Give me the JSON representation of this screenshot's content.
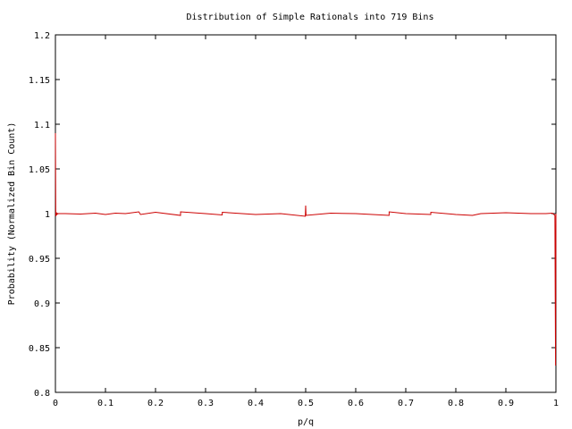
{
  "chart_data": {
    "type": "line",
    "title": "Distribution of Simple Rationals into 719 Bins",
    "xlabel": "p/q",
    "ylabel": "Probability (Normalized Bin Count)",
    "xlim": [
      0,
      1
    ],
    "ylim": [
      0.8,
      1.2
    ],
    "xticks": [
      0,
      0.1,
      0.2,
      0.3,
      0.4,
      0.5,
      0.6,
      0.7,
      0.8,
      0.9,
      1
    ],
    "xtick_labels": [
      "0",
      "0.1",
      "0.2",
      "0.3",
      "0.4",
      "0.5",
      "0.6",
      "0.7",
      "0.8",
      "0.9",
      "1"
    ],
    "yticks": [
      0.8,
      0.85,
      0.9,
      0.95,
      1,
      1.05,
      1.1,
      1.15,
      1.2
    ],
    "ytick_labels": [
      "0.8",
      "0.85",
      "0.9",
      "0.95",
      "1",
      "1.05",
      "1.1",
      "1.15",
      "1.2"
    ],
    "grid": false,
    "color": "#cc0000",
    "series": [
      {
        "x": [
          0.0,
          0.0007,
          0.0014,
          0.002,
          0.003,
          0.004,
          0.006,
          0.01,
          0.02,
          0.05,
          0.08,
          0.1,
          0.12,
          0.14,
          0.1667,
          0.17,
          0.2,
          0.25,
          0.2501,
          0.3,
          0.3333,
          0.3334,
          0.4,
          0.45,
          0.4993,
          0.5,
          0.5007,
          0.55,
          0.6,
          0.6667,
          0.6668,
          0.7,
          0.75,
          0.7501,
          0.8,
          0.8333,
          0.85,
          0.9,
          0.95,
          0.98,
          0.993,
          0.996,
          0.998,
          0.9986,
          0.9993,
          1.0
        ],
        "y": [
          1.09,
          0.997,
          1.001,
          0.998,
          1.0005,
          0.9995,
          1.0,
          1.0,
          1.0,
          0.9995,
          1.0005,
          0.999,
          1.0005,
          1.0,
          1.002,
          0.999,
          1.0015,
          0.998,
          1.002,
          1.0,
          0.9985,
          1.0015,
          0.999,
          1.0,
          0.997,
          1.009,
          0.998,
          1.0005,
          1.0,
          0.998,
          1.002,
          1.0,
          0.999,
          1.0015,
          0.999,
          0.998,
          1.0,
          1.001,
          1.0,
          1.0,
          1.0005,
          0.999,
          0.998,
          0.91,
          0.83,
          1.0
        ]
      }
    ]
  }
}
